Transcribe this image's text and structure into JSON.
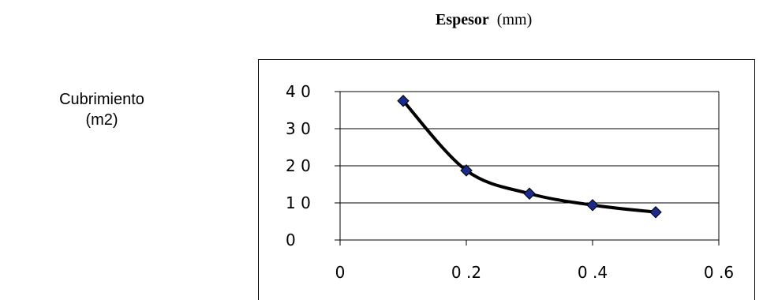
{
  "title": {
    "bold": "Espesor",
    "normal": "(mm)"
  },
  "ylabel": {
    "line1": "Cubrimiento",
    "line2": "(m2)"
  },
  "chart_data": {
    "type": "scatter",
    "title": "Espesor (mm)",
    "ylabel": "Cubrimiento (m2)",
    "xlabel": "",
    "xlim": [
      0,
      0.6
    ],
    "ylim": [
      0,
      40
    ],
    "grid": true,
    "line_style": "smoothed",
    "xticks": [
      "0",
      "0.2",
      "0.4",
      "0.6"
    ],
    "yticks": [
      "0",
      "1 0",
      "2 0",
      "3 0",
      "4 0"
    ],
    "xtick_values": [
      0,
      0.2,
      0.4,
      0.6
    ],
    "ytick_values": [
      0,
      10,
      20,
      30,
      40
    ],
    "series": [
      {
        "x": [
          0.1,
          0.2,
          0.3,
          0.4,
          0.5
        ],
        "y": [
          37.5,
          18.75,
          12.5,
          9.4,
          7.5
        ]
      }
    ],
    "colors": {
      "marker": "#1a2b8c",
      "line": "#000000",
      "grid": "#000000"
    }
  }
}
